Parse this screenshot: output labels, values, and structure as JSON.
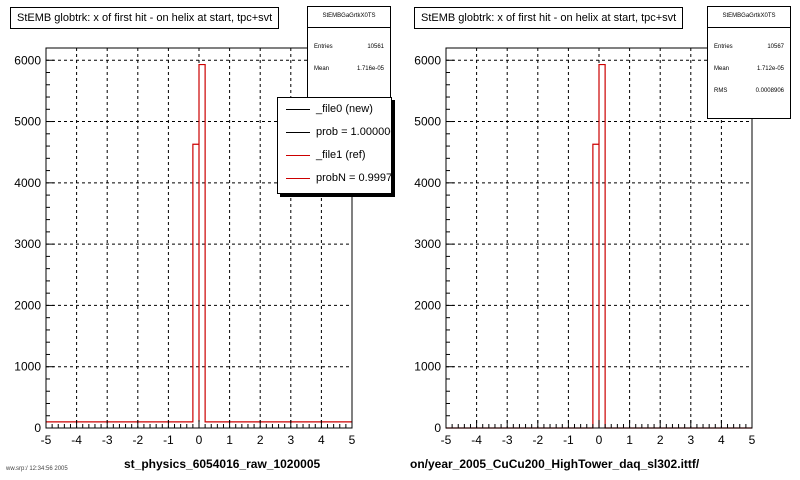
{
  "chart_data": [
    {
      "type": "bar",
      "title": "StEMB globtrk: x of first hit - on helix at start, tpc+svt",
      "xlim": [
        -5,
        5
      ],
      "ylim": [
        0,
        6200
      ],
      "x_ticks": [
        "-5",
        "-4",
        "-3",
        "-2",
        "-1",
        "0",
        "1",
        "2",
        "3",
        "4",
        "5"
      ],
      "y_ticks": [
        "0",
        "1000",
        "2000",
        "3000",
        "4000",
        "5000",
        "6000"
      ],
      "grid": true,
      "bin_width": 0.2,
      "bins": [
        {
          "x0": -0.2,
          "x1": 0.0,
          "value": 4630
        },
        {
          "x0": 0.0,
          "x1": 0.2,
          "value": 5930
        }
      ],
      "baseline_value": 100,
      "stats": {
        "name": "StEMBGaGrtkX0TS",
        "entries_label": "Entries",
        "entries": "10561",
        "mean_label": "Mean",
        "mean": "1.716e-05"
      },
      "legend": [
        {
          "label": "_file0 (new)",
          "color": "#000000"
        },
        {
          "label": "prob = 1.000000",
          "color": "#000000"
        },
        {
          "label": "_file1 (ref)",
          "color": "#cc0000"
        },
        {
          "label": "probN = 0.99975",
          "color": "#cc0000"
        }
      ],
      "footer": "st_physics_6054016_raw_1020005"
    },
    {
      "type": "bar",
      "title": "StEMB globtrk: x of first hit - on helix at start, tpc+svt",
      "xlim": [
        -5,
        5
      ],
      "ylim": [
        0,
        6200
      ],
      "x_ticks": [
        "-5",
        "-4",
        "-3",
        "-2",
        "-1",
        "0",
        "1",
        "2",
        "3",
        "4",
        "5"
      ],
      "y_ticks": [
        "0",
        "1000",
        "2000",
        "3000",
        "4000",
        "5000",
        "6000"
      ],
      "grid": true,
      "bin_width": 0.2,
      "bins": [
        {
          "x0": -0.2,
          "x1": 0.0,
          "value": 4630
        },
        {
          "x0": 0.0,
          "x1": 0.2,
          "value": 5930
        }
      ],
      "baseline_value": 0,
      "stats": {
        "name": "StEMBGaGrtkX0TS",
        "entries_label": "Entries",
        "entries": "10567",
        "mean_label": "Mean",
        "mean": "1.712e-05",
        "rms_label": "RMS",
        "rms": "0.0008906"
      },
      "footer": "on/year_2005_CuCu200_HighTower_daq_sl302.ittf/"
    }
  ],
  "colors": {
    "histogram": "#cc0000",
    "grid": "#000000",
    "frame": "#000000"
  },
  "stamp": "ww.srp:/ 12:34:56 2005"
}
